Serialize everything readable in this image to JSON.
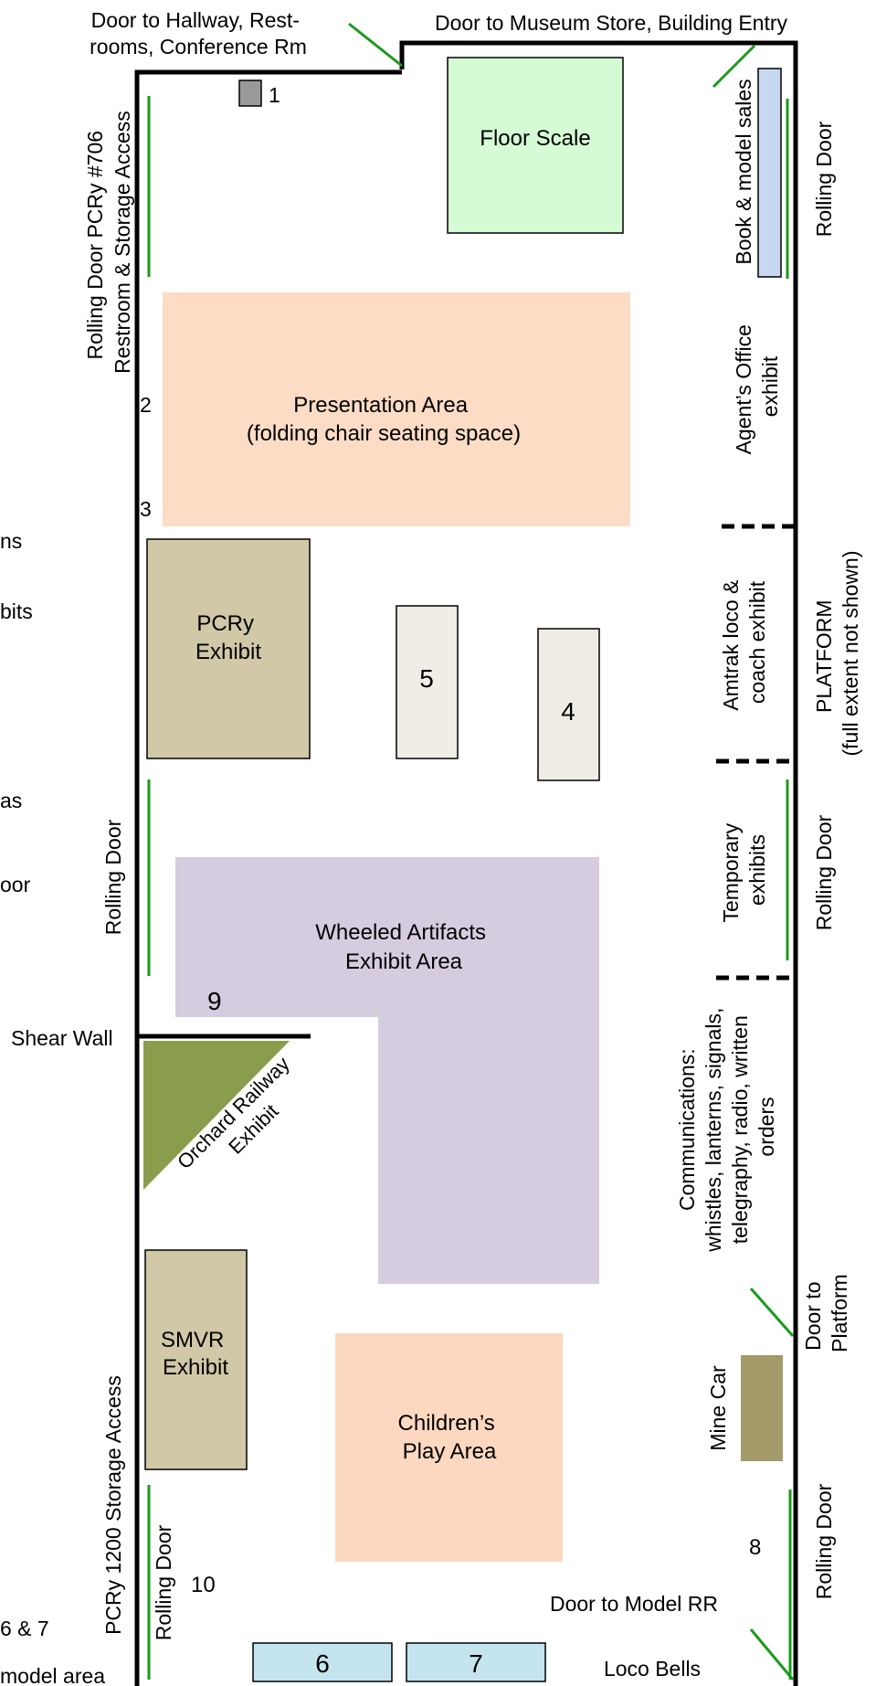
{
  "colors": {
    "wall": "#000000",
    "door_line": "#1a9a1a",
    "floor_scale": "#d4fbd4",
    "presentation_area": "#fcdcc4",
    "beige_exhibit": "#d0c8a6",
    "cream_box": "#f0ede6",
    "wheeled_artifacts": "#d6cce0",
    "orchard": "#8a9d4c",
    "play_area": "#fcd8c0",
    "mine_car": "#a49a6a",
    "bench_blue": "#c4e4f0",
    "book_sales": "#c8d8f0"
  },
  "labels": {
    "door_hallway": [
      "Door to Hallway, Rest-",
      "rooms, Conference Rm"
    ],
    "door_museum_store": "Door to Museum Store, Building Entry",
    "floor_scale": "Floor Scale",
    "presentation_area": [
      "Presentation Area",
      "(folding chair seating space)"
    ],
    "pcry_exhibit": [
      "PCRy",
      "Exhibit"
    ],
    "wheeled_artifacts": [
      "Wheeled Artifacts",
      "Exhibit Area"
    ],
    "orchard_railway": [
      "Orchard Railway",
      "Exhibit"
    ],
    "smvr_exhibit": [
      "SMVR",
      "Exhibit"
    ],
    "childrens_play_area": [
      "Children’s",
      "Play Area"
    ],
    "mine_car": "Mine Car",
    "shear_wall": "Shear Wall",
    "rolling_door_706": [
      "Rolling Door PCRy #706",
      "Restroom & Storage Access"
    ],
    "rolling_door_left": "Rolling Door",
    "pcry_1200": "PCRy 1200 Storage Access",
    "rolling_door_bottom_left": "Rolling Door",
    "book_sales": "Book & model sales",
    "rolling_door_right_top": "Rolling Door",
    "agents_office": [
      "Agent’s Office",
      "exhibit"
    ],
    "amtrak": [
      "Amtrak loco &",
      "coach exhibit"
    ],
    "platform": [
      "PLATFORM",
      "(full extent not shown)"
    ],
    "temporary_exhibits": [
      "Temporary",
      "exhibits"
    ],
    "rolling_door_right_mid": "Rolling Door",
    "communications": [
      "Communications:",
      "whistles, lanterns, signals,",
      "telegraphy, radio, written",
      "orders"
    ],
    "door_platform": [
      "Door to",
      "Platform"
    ],
    "rolling_door_right_bottom": "Rolling Door",
    "door_model_rr": "Door to Model RR",
    "loco_bells": "Loco Bells"
  },
  "numbers": {
    "n1": "1",
    "n2": "2",
    "n3": "3",
    "n4": "4",
    "n5": "5",
    "n6": "6",
    "n7": "7",
    "n8": "8",
    "n9": "9",
    "n10": "10"
  },
  "left_cutoff": {
    "t1": "ns",
    "t2": "bits",
    "t3": "as",
    "t4": "oor",
    "t5": "6 & 7",
    "t6": "model area"
  }
}
